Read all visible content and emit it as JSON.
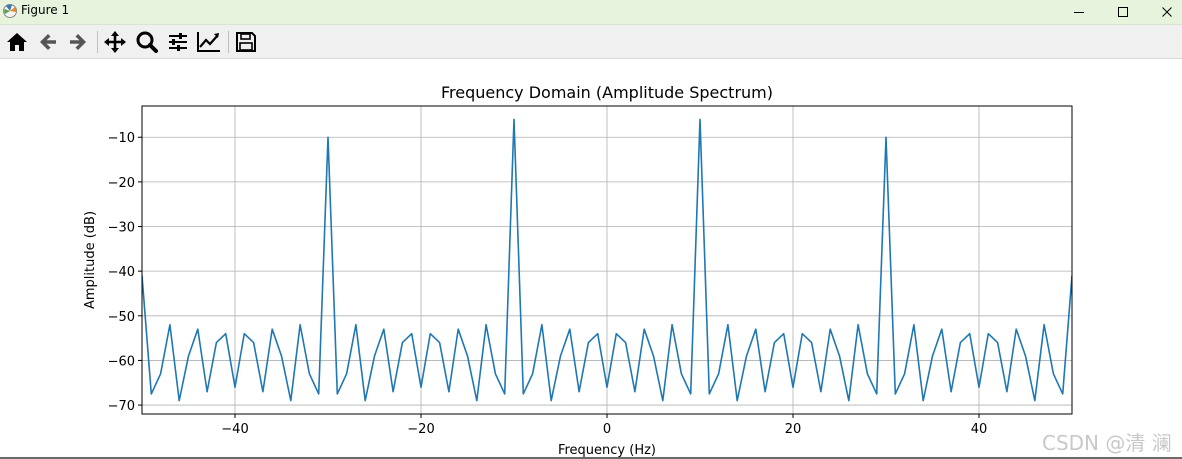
{
  "window": {
    "title": "Figure 1"
  },
  "toolbar": {
    "buttons": [
      {
        "name": "home-icon"
      },
      {
        "name": "back-arrow-icon"
      },
      {
        "name": "forward-arrow-icon"
      },
      {
        "name": "pan-icon"
      },
      {
        "name": "zoom-icon"
      },
      {
        "name": "configure-subplots-icon"
      },
      {
        "name": "edit-axis-icon"
      },
      {
        "name": "save-icon"
      }
    ]
  },
  "chart_data": {
    "type": "line",
    "title": "Frequency Domain (Amplitude Spectrum)",
    "xlabel": "Frequency (Hz)",
    "ylabel": "Amplitude (dB)",
    "xlim": [
      -50,
      50
    ],
    "ylim": [
      -72,
      -3
    ],
    "xticks": [
      -40,
      -20,
      0,
      20,
      40
    ],
    "xtick_labels": [
      "−40",
      "−20",
      "0",
      "20",
      "40"
    ],
    "yticks": [
      -10,
      -20,
      -30,
      -40,
      -50,
      -60,
      -70
    ],
    "ytick_labels": [
      "−10",
      "−20",
      "−30",
      "−40",
      "−50",
      "−60",
      "−70"
    ],
    "grid": true,
    "line_color": "#1f77b4",
    "series": [
      {
        "x": [
          -50,
          -49,
          -48,
          -47,
          -46,
          -45,
          -44,
          -43,
          -42,
          -41,
          -40,
          -39,
          -38,
          -37,
          -36,
          -35,
          -34,
          -33,
          -32,
          -31,
          -30,
          -29,
          -28,
          -27,
          -26,
          -25,
          -24,
          -23,
          -22,
          -21,
          -20,
          -19,
          -18,
          -17,
          -16,
          -15,
          -14,
          -13,
          -12,
          -11,
          -10,
          -9,
          -8,
          -7,
          -6,
          -5,
          -4,
          -3,
          -2,
          -1,
          0,
          1,
          2,
          3,
          4,
          5,
          6,
          7,
          8,
          9,
          10,
          11,
          12,
          13,
          14,
          15,
          16,
          17,
          18,
          19,
          20,
          21,
          22,
          23,
          24,
          25,
          26,
          27,
          28,
          29,
          30,
          31,
          32,
          33,
          34,
          35,
          36,
          37,
          38,
          39,
          40,
          41,
          42,
          43,
          44,
          45,
          46,
          47,
          48,
          49,
          50
        ],
        "values": [
          -41,
          -67.5,
          -63,
          -52,
          -69,
          -59,
          -53,
          -67,
          -56,
          -54,
          -66,
          -54,
          -56,
          -67,
          -53,
          -59,
          -69,
          -52,
          -63,
          -67.5,
          -10,
          -67.5,
          -63,
          -52,
          -69,
          -59,
          -53,
          -67,
          -56,
          -54,
          -66,
          -54,
          -56,
          -67,
          -53,
          -59,
          -69,
          -52,
          -63,
          -67.5,
          -6,
          -67.5,
          -63,
          -52,
          -69,
          -59,
          -53,
          -67,
          -56,
          -54,
          -66,
          -54,
          -56,
          -67,
          -53,
          -59,
          -69,
          -52,
          -63,
          -67.5,
          -6,
          -67.5,
          -63,
          -52,
          -69,
          -59,
          -53,
          -67,
          -56,
          -54,
          -66,
          -54,
          -56,
          -67,
          -53,
          -59,
          -69,
          -52,
          -63,
          -67.5,
          -10,
          -67.5,
          -63,
          -52,
          -69,
          -59,
          -53,
          -67,
          -56,
          -54,
          -66,
          -54,
          -56,
          -67,
          -53,
          -59,
          -69,
          -52,
          -63,
          -67.5,
          -41
        ]
      }
    ]
  },
  "watermark": "CSDN @清 澜"
}
